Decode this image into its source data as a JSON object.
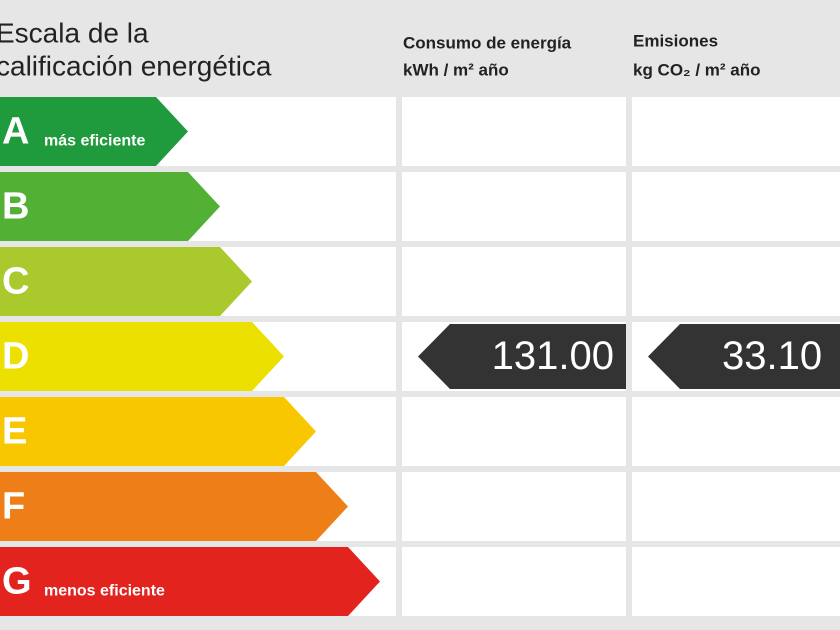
{
  "header": {
    "title_lines": [
      "Escala de la",
      "calificación energética"
    ],
    "columns": [
      {
        "title": "Consumo de energía",
        "unit": "kWh / m² año"
      },
      {
        "title": "Emisiones",
        "unit": "kg CO₂ / m² año"
      }
    ]
  },
  "scale": [
    {
      "letter": "A",
      "note": "más eficiente",
      "color": "#1f9a3c"
    },
    {
      "letter": "B",
      "color": "#52b135"
    },
    {
      "letter": "C",
      "color": "#a9c92c"
    },
    {
      "letter": "D",
      "color": "#ebe000"
    },
    {
      "letter": "E",
      "color": "#f9c700"
    },
    {
      "letter": "F",
      "color": "#ee7e18"
    },
    {
      "letter": "G",
      "note": "menos eficiente",
      "color": "#e3231e"
    }
  ],
  "rating": {
    "row": 3,
    "values": [
      "131.00",
      "33.10"
    ]
  }
}
